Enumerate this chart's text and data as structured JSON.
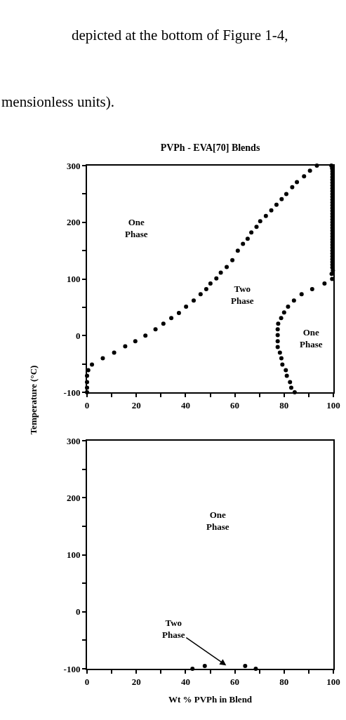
{
  "chart_data": [
    {
      "type": "scatter",
      "title": "PVPh - EVA[70] Blends",
      "ylabel": "Temperature (°C)",
      "marker": "circle",
      "grid": false,
      "annotations": [
        "depicted at the bottom of Figure 1-4,",
        "mensionless units).",
        "One\nPhase",
        "Two\nPhase",
        "One\nPhase"
      ],
      "xlim": [
        0,
        100
      ],
      "xticks": [
        0,
        {
          "value": 10,
          "label": null
        },
        20,
        {
          "value": 30,
          "label": null
        },
        40,
        {
          "value": 50,
          "label": null
        },
        60,
        {
          "value": 70,
          "label": null
        },
        80,
        {
          "value": 90,
          "label": null
        },
        100
      ],
      "ylim": [
        -100,
        300
      ],
      "yticks": [
        -100,
        {
          "value": -50,
          "label": null
        },
        0,
        {
          "value": 50,
          "label": null
        },
        100,
        {
          "value": 150,
          "label": null
        },
        200,
        {
          "value": 250,
          "label": null
        },
        300
      ],
      "series": [
        {
          "color": "#000000",
          "x": [
            0,
            0,
            0,
            0,
            0.5,
            2,
            6.4,
            11,
            15.5,
            19.6,
            23.7,
            27.8,
            31,
            34.2,
            37.3,
            40.2,
            43.3,
            46.1,
            48.4,
            50.1,
            52.5,
            54.3,
            56.7,
            59,
            61.2,
            63.3,
            65.2,
            66.7,
            68.8,
            70.3,
            72.6,
            74.8,
            76.9,
            79,
            80.9,
            83.3,
            85.2,
            88.1,
            90.5,
            93.3
          ],
          "values": [
            -100,
            -92,
            -82,
            -71,
            -61,
            -51,
            -40,
            -30,
            -19,
            -10,
            0,
            11,
            21,
            31,
            40,
            51,
            62,
            73,
            82,
            92,
            101,
            111,
            121,
            133,
            150,
            162,
            171,
            182,
            192,
            202,
            211,
            221,
            231,
            241,
            250,
            262,
            271,
            281,
            291,
            300
          ]
        },
        {
          "color": "#000000",
          "x": [
            99.2,
            99.5,
            99.6,
            99.6,
            99.6,
            99.6,
            99.6,
            99.6,
            99.6,
            99.6,
            99.6,
            99.6,
            99.6,
            99.6,
            99.6,
            99.6,
            99.6,
            99.6,
            99.6,
            99.6,
            99.6,
            99.6,
            99.6,
            99.6,
            99.6,
            99.6,
            99.6,
            99.6,
            99.6,
            99.6,
            99.6,
            99.6,
            99.6,
            99.6,
            99.6,
            99.6,
            99.6,
            99.8,
            99.3,
            99.5,
            96.4,
            91.4,
            87.1,
            84,
            81.6,
            80,
            78.8,
            77.6,
            77.4,
            77.4,
            77.4,
            77.4,
            78.3,
            78.9,
            79.3,
            80.7,
            81.1,
            82.4,
            82.9,
            84.3
          ],
          "values": [
            300,
            295,
            290,
            285,
            280,
            275,
            270,
            265,
            260,
            255,
            250,
            245,
            240,
            235,
            230,
            225,
            220,
            215,
            210,
            205,
            200,
            195,
            190,
            185,
            180,
            175,
            170,
            165,
            160,
            155,
            150,
            145,
            140,
            135,
            130,
            125,
            120,
            115,
            109,
            100,
            92,
            82,
            73,
            62,
            51,
            41,
            31,
            21,
            11,
            1,
            -10,
            -20,
            -30,
            -40,
            -51,
            -61,
            -71,
            -82,
            -92,
            -100
          ]
        }
      ]
    },
    {
      "type": "scatter",
      "xlabel": "Wt % PVPh in Blend",
      "marker": "circle",
      "grid": false,
      "annotations": [
        "One\nPhase",
        "Two\nPhase"
      ],
      "xlim": [
        0,
        100
      ],
      "xticks": [
        0,
        {
          "value": 10,
          "label": null
        },
        20,
        {
          "value": 30,
          "label": null
        },
        40,
        {
          "value": 50,
          "label": null
        },
        60,
        {
          "value": 70,
          "label": null
        },
        80,
        {
          "value": 90,
          "label": null
        },
        100
      ],
      "ylim": [
        -100,
        300
      ],
      "yticks": [
        -100,
        {
          "value": -50,
          "label": null
        },
        0,
        {
          "value": 50,
          "label": null
        },
        100,
        {
          "value": 150,
          "label": null
        },
        200,
        {
          "value": 250,
          "label": null
        },
        300
      ],
      "series": [
        {
          "color": "#000000",
          "x": [
            42.8,
            47.8,
            64.2,
            68.5
          ],
          "values": [
            -100,
            -95,
            -95,
            -100
          ]
        }
      ]
    }
  ]
}
